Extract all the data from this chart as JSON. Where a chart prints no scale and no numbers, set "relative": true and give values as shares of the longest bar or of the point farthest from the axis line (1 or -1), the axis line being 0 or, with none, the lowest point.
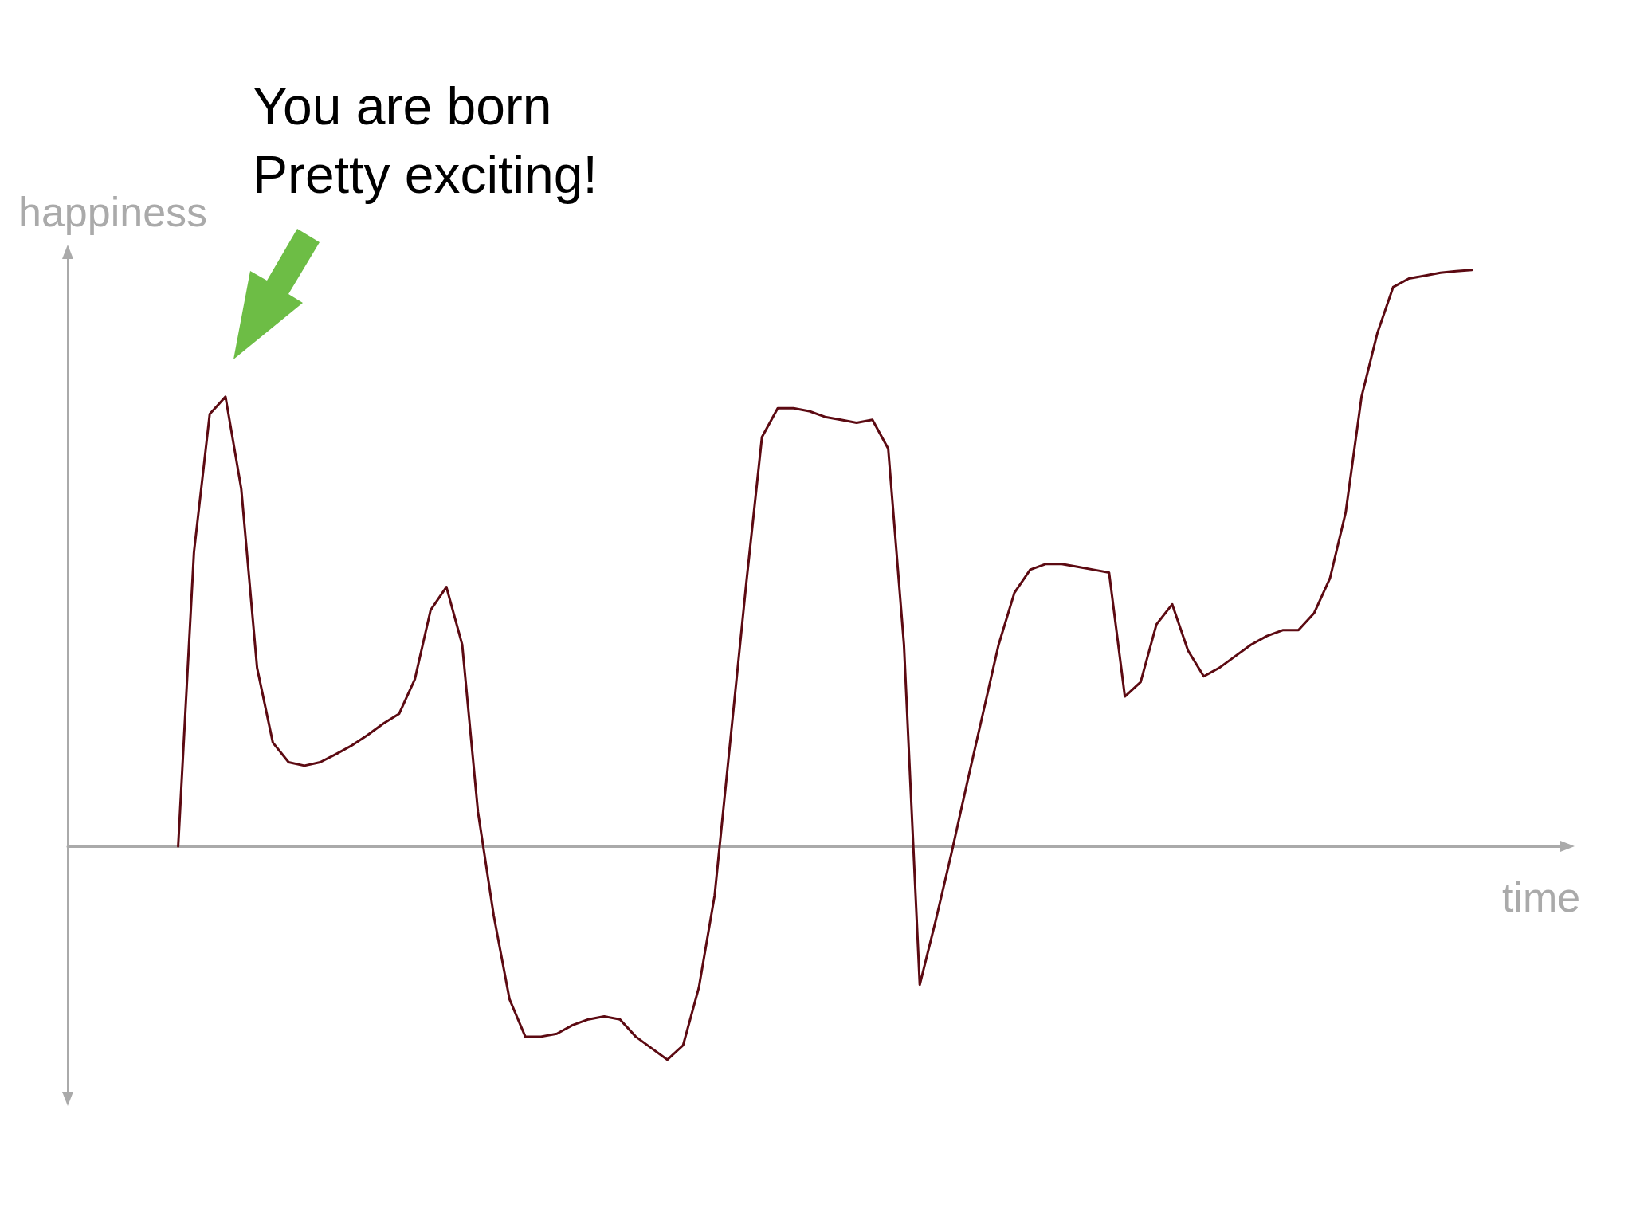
{
  "chart_data": {
    "type": "line",
    "relative": true,
    "xlabel": "time",
    "ylabel": "happiness",
    "annotations": [
      "You are born\nPretty exciting!"
    ],
    "color": "#5c0a12",
    "line_style": "solid",
    "marker": "none",
    "grid": false,
    "categories": [
      null,
      null,
      null,
      null,
      null,
      null,
      null,
      null,
      null,
      null,
      null,
      null,
      null,
      null,
      null,
      null,
      null,
      null,
      null,
      null,
      null,
      null,
      null,
      null,
      null,
      null,
      null,
      null,
      null,
      null,
      null,
      null,
      null,
      null,
      null,
      null,
      null,
      null,
      null,
      null,
      null,
      null,
      null,
      null,
      null,
      null,
      null,
      null,
      null,
      null,
      null,
      null,
      null,
      null,
      null,
      null,
      null,
      null,
      null,
      null,
      null,
      null,
      null,
      null,
      null,
      null,
      null,
      null,
      null,
      null,
      null,
      null,
      null,
      null,
      null,
      null,
      null,
      null,
      null,
      null,
      null,
      null,
      null,
      null,
      null,
      null,
      null,
      null,
      null,
      null,
      null,
      null,
      null,
      null,
      null,
      null
    ],
    "values": [
      null,
      null,
      null,
      null,
      null,
      null,
      null,
      0,
      0.51,
      0.75,
      0.78,
      0.62,
      0.31,
      0.18,
      0.146,
      0.14,
      0.146,
      0.16,
      0.175,
      0.193,
      0.213,
      0.23,
      0.29,
      0.41,
      0.45,
      0.35,
      0.06,
      -0.12,
      -0.265,
      -0.33,
      -0.33,
      -0.325,
      -0.31,
      -0.3,
      -0.295,
      -0.3,
      -0.33,
      -0.35,
      -0.37,
      -0.345,
      -0.245,
      -0.085,
      0.185,
      0.455,
      0.71,
      0.76,
      0.76,
      0.755,
      0.745,
      0.74,
      0.735,
      0.74,
      0.69,
      0.35,
      -0.24,
      -0.13,
      -0.013,
      0.11,
      0.23,
      0.35,
      0.44,
      0.48,
      0.49,
      0.49,
      0.485,
      0.48,
      0.475,
      0.26,
      0.285,
      0.385,
      0.42,
      0.34,
      0.295,
      0.31,
      0.33,
      0.35,
      0.365,
      0.375,
      0.375,
      0.405,
      0.465,
      0.58,
      0.78,
      0.89,
      0.97,
      0.985,
      0.99,
      0.995,
      0.998,
      1,
      null,
      null,
      null,
      null,
      null,
      null
    ]
  }
}
